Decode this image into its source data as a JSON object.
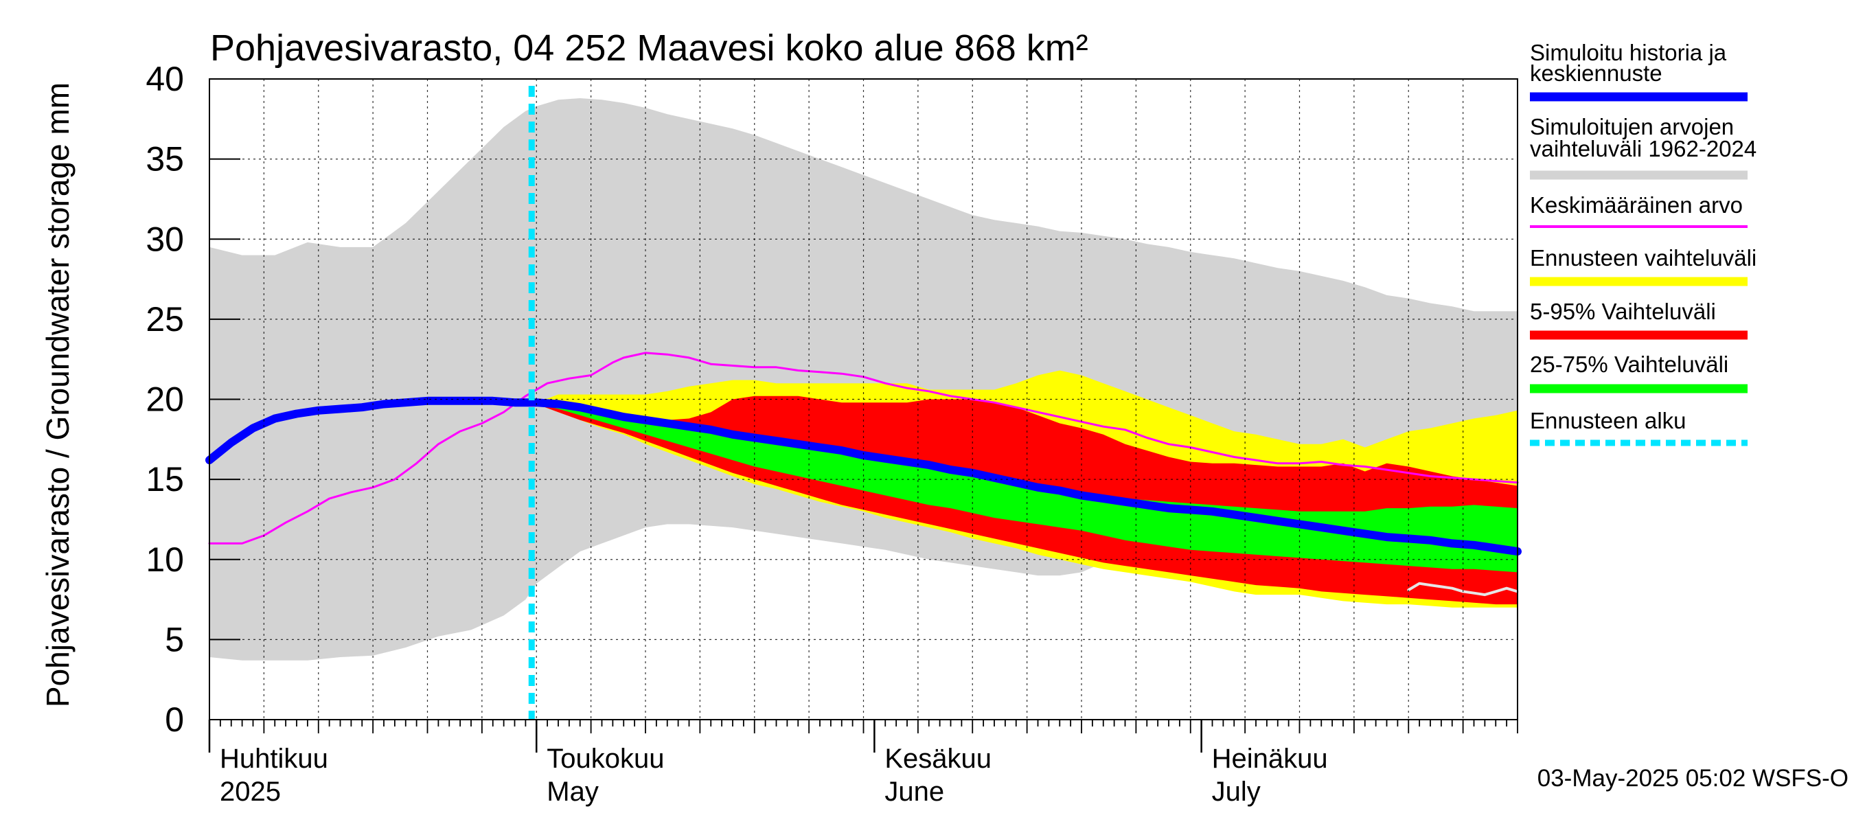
{
  "chart_data": {
    "type": "area",
    "title": "Pohjavesivarasto, 04 252 Maavesi koko alue 868 km²",
    "ylabel": "Pohjavesivarasto / Groundwater storage   mm",
    "ylim": [
      0,
      40
    ],
    "y_ticks": [
      0,
      5,
      10,
      15,
      20,
      25,
      30,
      35,
      40
    ],
    "x_range_days": [
      0,
      120
    ],
    "x_range_note": "day 0 = 2025-04-01, day 120 = 2025-07-30",
    "month_labels": [
      {
        "top": "Huhtikuu",
        "bottom": "2025",
        "day": 0
      },
      {
        "top": "Toukokuu",
        "bottom": "May",
        "day": 30
      },
      {
        "top": "Kesäkuu",
        "bottom": "June",
        "day": 61
      },
      {
        "top": "Heinäkuu",
        "bottom": "July",
        "day": 91
      }
    ],
    "month_boundaries": [
      0,
      30,
      61,
      91
    ],
    "grid": true,
    "forecast_start_day": 30,
    "footer": "03-May-2025 05:02 WSFS-O",
    "legend": {
      "position": "right",
      "items": [
        {
          "label1": "Simuloitu historia ja",
          "label2": "keskiennuste",
          "color": "#0000ff",
          "style": "thick"
        },
        {
          "label1": "Simuloitujen arvojen",
          "label2": "vaihteluväli 1962-2024",
          "color": "#d3d3d3",
          "style": "thick"
        },
        {
          "label1": "Keskimääräinen arvo",
          "label2": "",
          "color": "#ff00ff",
          "style": "thin"
        },
        {
          "label1": "Ennusteen vaihteluväli",
          "label2": "",
          "color": "#ffff00",
          "style": "thick"
        },
        {
          "label1": "5-95% Vaihteluväli",
          "label2": "",
          "color": "#ff0000",
          "style": "thick"
        },
        {
          "label1": "25-75% Vaihteluväli",
          "label2": "",
          "color": "#00ff00",
          "style": "thick"
        },
        {
          "label1": "Ennusteen alku",
          "label2": "",
          "color": "#00e5ff",
          "style": "dashed"
        }
      ]
    },
    "series": [
      {
        "name": "Simuloitujen arvojen vaihteluväli 1962-2024",
        "kind": "band",
        "color": "#d3d3d3",
        "x": [
          0,
          3,
          6,
          9,
          12,
          15,
          18,
          21,
          24,
          27,
          29,
          30,
          32,
          34,
          36,
          38,
          40,
          42,
          44,
          46,
          48,
          50,
          52,
          54,
          56,
          58,
          60,
          62,
          64,
          66,
          68,
          70,
          72,
          74,
          76,
          78,
          80,
          82,
          84,
          86,
          88,
          90,
          92,
          94,
          96,
          98,
          100,
          102,
          104,
          106,
          108,
          110,
          112,
          114,
          116,
          118,
          120
        ],
        "upper": [
          29.5,
          29,
          29,
          29.8,
          29.5,
          29.5,
          31,
          33,
          35,
          37,
          38,
          38.3,
          38.7,
          38.8,
          38.7,
          38.5,
          38.2,
          37.8,
          37.5,
          37.2,
          36.9,
          36.5,
          36.0,
          35.5,
          35.0,
          34.5,
          34.0,
          33.5,
          33.0,
          32.5,
          32.0,
          31.5,
          31.2,
          31.0,
          30.8,
          30.5,
          30.4,
          30.2,
          30.0,
          29.7,
          29.5,
          29.2,
          29.0,
          28.8,
          28.5,
          28.2,
          28.0,
          27.7,
          27.4,
          27.0,
          26.5,
          26.3,
          26.0,
          25.8,
          25.5,
          25.5,
          25.5
        ],
        "lower": [
          3.9,
          3.7,
          3.7,
          3.7,
          3.9,
          4.0,
          4.5,
          5.2,
          5.6,
          6.5,
          7.5,
          8.5,
          9.5,
          10.5,
          11.0,
          11.5,
          12.0,
          12.2,
          12.2,
          12.1,
          12.0,
          11.8,
          11.6,
          11.4,
          11.2,
          11.0,
          10.8,
          10.6,
          10.3,
          10.0,
          9.8,
          9.6,
          9.4,
          9.2,
          9.0,
          9.0,
          9.2,
          9.8,
          10.0,
          9.8,
          9.6,
          9.4,
          9.2,
          9.0,
          8.8,
          8.6,
          8.5,
          8.4,
          8.3,
          8.3,
          8.2,
          8.2,
          8.1,
          8.0,
          7.9,
          7.9,
          7.8
        ]
      },
      {
        "name": "Ennusteen vaihteluväli",
        "kind": "band",
        "color": "#ffff00",
        "x": [
          30,
          32,
          34,
          36,
          38,
          40,
          42,
          44,
          46,
          48,
          50,
          52,
          54,
          56,
          58,
          60,
          62,
          64,
          66,
          68,
          70,
          72,
          74,
          76,
          78,
          80,
          82,
          84,
          86,
          88,
          90,
          92,
          94,
          96,
          98,
          100,
          102,
          104,
          106,
          108,
          110,
          112,
          114,
          116,
          118,
          120
        ],
        "upper": [
          19.8,
          20.3,
          20.3,
          20.3,
          20.3,
          20.3,
          20.5,
          20.8,
          21.0,
          21.2,
          21.2,
          21.0,
          21.0,
          21.0,
          21.0,
          21.0,
          21.0,
          21.0,
          20.6,
          20.6,
          20.6,
          20.6,
          21.0,
          21.5,
          21.8,
          21.5,
          21.0,
          20.5,
          20.0,
          19.5,
          19.0,
          18.5,
          18.0,
          17.8,
          17.5,
          17.2,
          17.2,
          17.5,
          17.0,
          17.5,
          18.0,
          18.2,
          18.5,
          18.8,
          19.0,
          19.3
        ],
        "lower": [
          19.7,
          19.2,
          18.7,
          18.2,
          17.8,
          17.2,
          16.7,
          16.2,
          15.7,
          15.2,
          14.7,
          14.4,
          14.0,
          13.6,
          13.3,
          13.0,
          12.6,
          12.3,
          12.0,
          11.7,
          11.3,
          11.0,
          10.7,
          10.3,
          10.0,
          9.7,
          9.4,
          9.2,
          9.0,
          8.8,
          8.6,
          8.3,
          8.0,
          7.8,
          7.8,
          7.8,
          7.6,
          7.4,
          7.3,
          7.2,
          7.2,
          7.1,
          7.0,
          7.0,
          7.0,
          7.0
        ]
      },
      {
        "name": "5-95% Vaihteluväli",
        "kind": "band",
        "color": "#ff0000",
        "x": [
          30,
          32,
          34,
          36,
          38,
          40,
          42,
          44,
          46,
          48,
          50,
          52,
          54,
          56,
          58,
          60,
          62,
          64,
          66,
          68,
          70,
          72,
          74,
          76,
          78,
          80,
          82,
          84,
          86,
          88,
          90,
          92,
          94,
          96,
          98,
          100,
          102,
          104,
          106,
          108,
          110,
          112,
          114,
          116,
          118,
          120
        ],
        "upper": [
          19.8,
          19.7,
          19.4,
          19.2,
          19.0,
          18.8,
          18.7,
          18.8,
          19.2,
          20.0,
          20.2,
          20.2,
          20.2,
          20.0,
          19.8,
          19.8,
          19.8,
          19.8,
          20.0,
          20.0,
          20.0,
          19.8,
          19.5,
          19.0,
          18.5,
          18.2,
          17.8,
          17.2,
          16.8,
          16.4,
          16.1,
          16.0,
          16.0,
          15.9,
          15.8,
          15.8,
          15.8,
          16.0,
          15.5,
          16.0,
          15.8,
          15.5,
          15.2,
          15.0,
          14.8,
          14.6
        ],
        "lower": [
          19.7,
          19.2,
          18.7,
          18.3,
          17.9,
          17.4,
          16.9,
          16.4,
          15.9,
          15.4,
          15.0,
          14.6,
          14.2,
          13.8,
          13.4,
          13.1,
          12.8,
          12.5,
          12.2,
          11.9,
          11.6,
          11.3,
          11.0,
          10.7,
          10.4,
          10.1,
          9.8,
          9.6,
          9.4,
          9.2,
          9.0,
          8.8,
          8.6,
          8.4,
          8.3,
          8.2,
          8.0,
          7.9,
          7.8,
          7.7,
          7.6,
          7.5,
          7.4,
          7.3,
          7.2,
          7.2
        ]
      },
      {
        "name": "25-75% Vaihteluväli",
        "kind": "band",
        "color": "#00ff00",
        "x": [
          30,
          32,
          34,
          36,
          38,
          40,
          42,
          44,
          46,
          48,
          50,
          52,
          54,
          56,
          58,
          60,
          62,
          64,
          66,
          68,
          70,
          72,
          74,
          76,
          78,
          80,
          82,
          84,
          86,
          88,
          90,
          92,
          94,
          96,
          98,
          100,
          102,
          104,
          106,
          108,
          110,
          112,
          114,
          116,
          118,
          120
        ],
        "upper": [
          19.8,
          19.6,
          19.3,
          19.0,
          18.8,
          18.6,
          18.4,
          18.2,
          18.0,
          17.8,
          17.7,
          17.5,
          17.2,
          17.0,
          16.8,
          16.6,
          16.4,
          16.2,
          16.0,
          15.8,
          15.5,
          15.2,
          14.8,
          14.6,
          14.4,
          14.2,
          14.0,
          13.8,
          13.7,
          13.6,
          13.5,
          13.4,
          13.3,
          13.2,
          13.1,
          13.0,
          13.0,
          13.0,
          13.0,
          13.2,
          13.2,
          13.3,
          13.3,
          13.4,
          13.3,
          13.2
        ],
        "lower": [
          19.7,
          19.4,
          19.0,
          18.6,
          18.2,
          17.8,
          17.4,
          17.0,
          16.6,
          16.2,
          15.8,
          15.5,
          15.2,
          14.9,
          14.6,
          14.3,
          14.0,
          13.7,
          13.4,
          13.2,
          12.9,
          12.6,
          12.4,
          12.2,
          12.0,
          11.8,
          11.5,
          11.2,
          11.0,
          10.8,
          10.6,
          10.5,
          10.4,
          10.3,
          10.2,
          10.1,
          10.0,
          9.9,
          9.8,
          9.7,
          9.6,
          9.5,
          9.4,
          9.4,
          9.3,
          9.2
        ]
      },
      {
        "name": "Keskimääräinen arvo",
        "kind": "line",
        "color": "#ff00ff",
        "width": 3,
        "x": [
          0,
          3,
          5,
          7,
          9,
          11,
          13,
          15,
          17,
          19,
          21,
          23,
          25,
          27,
          29,
          31,
          33,
          35,
          37,
          38,
          40,
          42,
          44,
          46,
          48,
          50,
          52,
          54,
          56,
          58,
          60,
          62,
          64,
          66,
          68,
          70,
          72,
          74,
          76,
          78,
          80,
          82,
          84,
          86,
          88,
          90,
          92,
          94,
          96,
          98,
          100,
          102,
          104,
          106,
          108,
          110,
          112,
          114,
          116,
          118,
          120
        ],
        "y": [
          11.0,
          11.0,
          11.5,
          12.3,
          13.0,
          13.8,
          14.2,
          14.5,
          15.0,
          16.0,
          17.2,
          18.0,
          18.5,
          19.2,
          20.2,
          21.0,
          21.3,
          21.5,
          22.3,
          22.6,
          22.9,
          22.8,
          22.6,
          22.2,
          22.1,
          22.0,
          22.0,
          21.8,
          21.7,
          21.6,
          21.4,
          21.0,
          20.7,
          20.5,
          20.2,
          20.0,
          19.8,
          19.5,
          19.2,
          18.9,
          18.6,
          18.3,
          18.1,
          17.6,
          17.2,
          17.0,
          16.7,
          16.4,
          16.2,
          16.0,
          16.0,
          16.1,
          15.9,
          15.8,
          15.6,
          15.4,
          15.2,
          15.1,
          15.0,
          14.9,
          14.8
        ]
      },
      {
        "name": "Simuloitu historia ja keskiennuste",
        "kind": "line",
        "color": "#0000ff",
        "width": 12,
        "x": [
          0,
          2,
          4,
          6,
          8,
          10,
          12,
          14,
          16,
          18,
          20,
          22,
          24,
          26,
          28,
          30,
          32,
          34,
          36,
          38,
          40,
          42,
          44,
          46,
          48,
          50,
          52,
          54,
          56,
          58,
          60,
          62,
          64,
          66,
          68,
          70,
          72,
          74,
          76,
          78,
          80,
          82,
          84,
          86,
          88,
          90,
          92,
          94,
          96,
          98,
          100,
          102,
          104,
          106,
          108,
          110,
          112,
          114,
          116,
          118,
          120
        ],
        "y": [
          16.2,
          17.3,
          18.2,
          18.8,
          19.1,
          19.3,
          19.4,
          19.5,
          19.7,
          19.8,
          19.9,
          19.9,
          19.9,
          19.9,
          19.8,
          19.8,
          19.7,
          19.5,
          19.2,
          18.9,
          18.7,
          18.5,
          18.3,
          18.1,
          17.8,
          17.6,
          17.4,
          17.2,
          17.0,
          16.8,
          16.5,
          16.3,
          16.1,
          15.9,
          15.6,
          15.4,
          15.1,
          14.8,
          14.5,
          14.3,
          14.0,
          13.8,
          13.6,
          13.4,
          13.2,
          13.1,
          13.0,
          12.8,
          12.6,
          12.4,
          12.2,
          12.0,
          11.8,
          11.6,
          11.4,
          11.3,
          11.2,
          11.0,
          10.9,
          10.7,
          10.5
        ]
      },
      {
        "name": "Minimum history trace",
        "kind": "line",
        "color": "#e6e6e6",
        "width": 4,
        "x": [
          110,
          111,
          112,
          113,
          114,
          115,
          116,
          117,
          118,
          119,
          120
        ],
        "y": [
          8.1,
          8.5,
          8.4,
          8.3,
          8.2,
          8.0,
          7.9,
          7.8,
          8.0,
          8.2,
          8.0
        ]
      }
    ]
  }
}
